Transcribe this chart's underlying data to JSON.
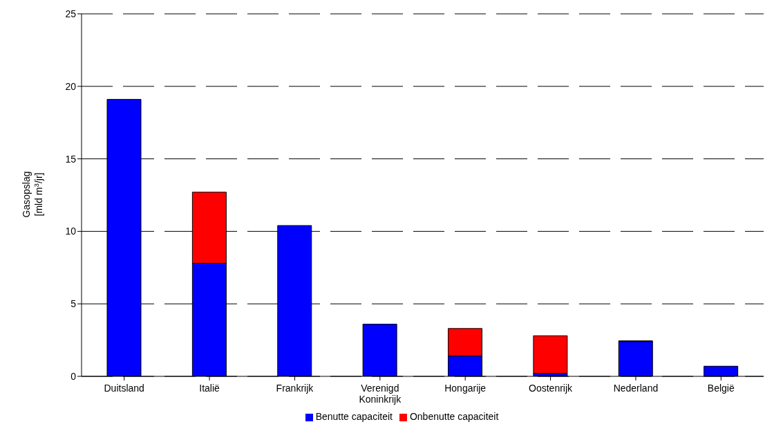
{
  "chart_data": {
    "type": "bar",
    "stacked": true,
    "ylabel": "Gasopslag\n[mld m$^{3}$/jr]",
    "categories": [
      "Duitsland",
      "Italië",
      "Frankrijk",
      "Verenigd Koninkrijk",
      "Hongarije",
      "Oostenrijk",
      "Nederland",
      "België"
    ],
    "series": [
      {
        "name": "Benutte capaciteit",
        "color": "#0000ff",
        "values": [
          19.1,
          7.8,
          10.4,
          3.6,
          1.4,
          0.2,
          2.4,
          0.7
        ]
      },
      {
        "name": "Onbenutte capaciteit",
        "color": "#ff0000",
        "values": [
          null,
          4.9,
          null,
          null,
          1.9,
          2.6,
          0.05,
          null
        ]
      }
    ],
    "ylim": [
      0,
      25
    ],
    "yticks": [
      0,
      5,
      10,
      15,
      20,
      25
    ],
    "grid": "y",
    "legend": "bottom"
  }
}
